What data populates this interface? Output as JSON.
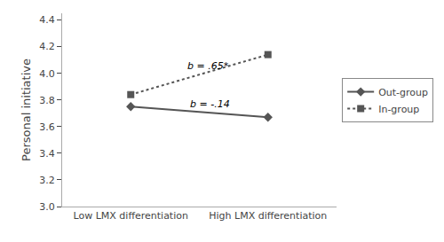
{
  "chart_data": {
    "type": "line",
    "categories": [
      "Low LMX differentiation",
      "High LMX differentiation"
    ],
    "series": [
      {
        "name": "Out-group",
        "color": "#555555",
        "values": [
          3.75,
          3.67
        ],
        "marker": "diamond",
        "line_style": "solid"
      },
      {
        "name": "In-group",
        "color": "#555555",
        "values": [
          3.84,
          4.14
        ],
        "marker": "square",
        "line_style": "dotted"
      }
    ],
    "ylabel": "Personal initiative",
    "ylim": [
      3.0,
      4.45
    ],
    "yticks": [
      {
        "value": 3.0,
        "label": "3.0"
      },
      3.2,
      3.4,
      3.6,
      3.8,
      {
        "value": 4.0,
        "label": "4.0"
      },
      4.2,
      4.4
    ],
    "annotations": [
      {
        "text": "b = .65*",
        "x": 0.4,
        "y": 4.0
      },
      {
        "text": "b = -.14",
        "x": 0.42,
        "y": 3.71
      }
    ],
    "grid": false,
    "legend": "right"
  }
}
